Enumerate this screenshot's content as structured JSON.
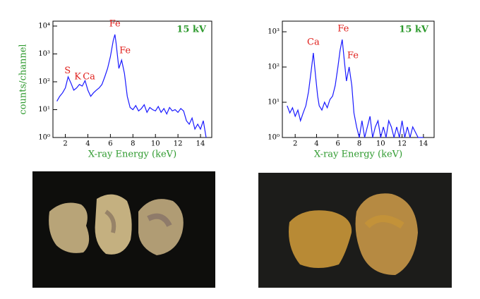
{
  "chart_data": [
    {
      "type": "line",
      "note": "15 kV",
      "xlabel": "X-ray Energy (keV)",
      "ylabel": "counts/channel",
      "yscale": "log",
      "xlim": [
        0.9,
        15
      ],
      "ylim": [
        1,
        15000
      ],
      "xticks": [
        2,
        4,
        6,
        8,
        10,
        12,
        14
      ],
      "yticks": [
        {
          "value": 1,
          "label": "10⁰"
        },
        {
          "value": 10,
          "label": "10¹"
        },
        {
          "value": 100,
          "label": "10²"
        },
        {
          "value": 1000,
          "label": "10³"
        },
        {
          "value": 10000,
          "label": "10⁴"
        }
      ],
      "x": [
        1.25,
        1.5,
        1.75,
        2.0,
        2.25,
        2.5,
        2.75,
        3.0,
        3.25,
        3.5,
        3.75,
        4.0,
        4.25,
        4.5,
        4.75,
        5.0,
        5.25,
        5.5,
        5.75,
        6.0,
        6.25,
        6.4,
        6.5,
        6.75,
        7.0,
        7.25,
        7.5,
        7.75,
        8.0,
        8.25,
        8.5,
        8.75,
        9.0,
        9.25,
        9.5,
        9.75,
        10.0,
        10.25,
        10.5,
        10.75,
        11.0,
        11.25,
        11.5,
        11.75,
        12.0,
        12.25,
        12.5,
        12.75,
        13.0,
        13.25,
        13.5,
        13.75,
        14.0,
        14.25,
        14.5
      ],
      "series": [
        {
          "color": "#1a1aff",
          "values": [
            20,
            30,
            40,
            60,
            150,
            90,
            50,
            60,
            80,
            70,
            110,
            50,
            30,
            40,
            50,
            60,
            80,
            150,
            300,
            800,
            3000,
            5000,
            2500,
            300,
            600,
            200,
            30,
            12,
            10,
            14,
            9,
            11,
            15,
            8,
            12,
            10,
            9,
            13,
            8,
            11,
            7,
            12,
            9,
            10,
            8,
            11,
            9,
            4,
            3,
            5,
            2,
            3,
            2,
            4,
            1
          ]
        }
      ],
      "annotation_color": "#e0201c",
      "annotations": [
        {
          "text": "S",
          "x": 2.2,
          "y": 250
        },
        {
          "text": "K",
          "x": 3.1,
          "y": 150
        },
        {
          "text": "Ca",
          "x": 4.1,
          "y": 150
        },
        {
          "text": "Fe",
          "x": 6.4,
          "y": 12000
        },
        {
          "text": "Fe",
          "x": 7.3,
          "y": 1300
        }
      ]
    },
    {
      "type": "line",
      "note": "15 kV",
      "xlabel": "X-ray Energy (keV)",
      "yscale": "log",
      "xlim": [
        0.8,
        15
      ],
      "ylim": [
        1,
        2000
      ],
      "xticks": [
        2,
        4,
        6,
        8,
        10,
        12,
        14
      ],
      "yticks": [
        {
          "value": 1,
          "label": "10⁰"
        },
        {
          "value": 10,
          "label": "10¹"
        },
        {
          "value": 100,
          "label": "10²"
        },
        {
          "value": 1000,
          "label": "10³"
        }
      ],
      "x": [
        1.25,
        1.5,
        1.75,
        2.0,
        2.25,
        2.5,
        2.75,
        3.0,
        3.25,
        3.5,
        3.7,
        3.9,
        4.1,
        4.25,
        4.5,
        4.75,
        5.0,
        5.25,
        5.5,
        5.75,
        6.0,
        6.2,
        6.4,
        6.6,
        6.8,
        7.05,
        7.3,
        7.5,
        7.75,
        8.0,
        8.25,
        8.5,
        8.75,
        9.0,
        9.25,
        9.5,
        9.75,
        10.0,
        10.25,
        10.5,
        10.75,
        11.0,
        11.25,
        11.5,
        11.75,
        12.0,
        12.25,
        12.5,
        12.75,
        13.0,
        13.5,
        14.0
      ],
      "series": [
        {
          "color": "#1a1aff",
          "values": [
            8,
            5,
            7,
            4,
            6,
            3,
            5,
            8,
            20,
            80,
            250,
            60,
            15,
            8,
            6,
            10,
            7,
            12,
            15,
            30,
            100,
            300,
            600,
            150,
            40,
            100,
            30,
            5,
            2,
            1,
            3,
            1,
            2,
            4,
            1,
            2,
            3,
            1,
            2,
            1,
            3,
            2,
            1,
            2,
            1,
            3,
            1,
            2,
            1,
            2,
            1,
            1
          ]
        }
      ],
      "annotation_color": "#e0201c",
      "annotations": [
        {
          "text": "Ca",
          "x": 3.7,
          "y": 500
        },
        {
          "text": "Fe",
          "x": 6.5,
          "y": 1200
        },
        {
          "text": "Fe",
          "x": 7.4,
          "y": 210
        }
      ]
    }
  ]
}
